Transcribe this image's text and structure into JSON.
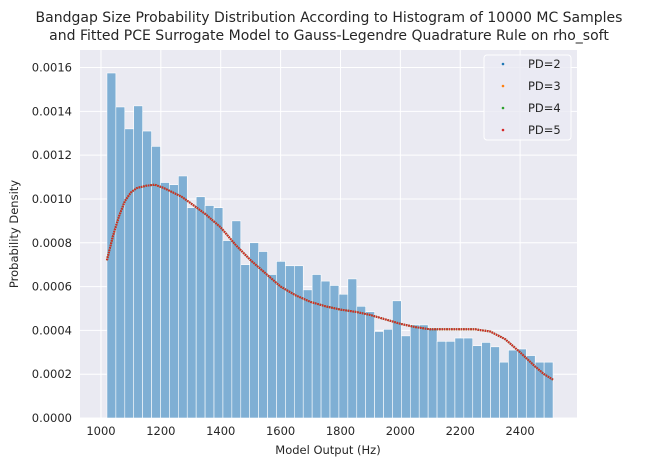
{
  "chart_data": {
    "type": "bar",
    "title_line1": "Bandgap Size Probability Distribution According to Histogram of 10000 MC Samples",
    "title_line2": "and Fitted PCE Surrogate Model to Gauss-Legendre Quadrature Rule on rho_soft",
    "xlabel": "Model Output (Hz)",
    "ylabel": "Probability Density",
    "xlim": [
      930,
      2590
    ],
    "ylim": [
      0,
      0.00168
    ],
    "xticks": [
      1000,
      1200,
      1400,
      1600,
      1800,
      2000,
      2200,
      2400
    ],
    "xtick_labels": [
      "1000",
      "1200",
      "1400",
      "1600",
      "1800",
      "2000",
      "2200",
      "2400"
    ],
    "yticks": [
      0,
      0.0002,
      0.0004,
      0.0006,
      0.0008,
      0.001,
      0.0012,
      0.0014,
      0.0016
    ],
    "ytick_labels": [
      "0.0000",
      "0.0002",
      "0.0004",
      "0.0006",
      "0.0008",
      "0.0010",
      "0.0012",
      "0.0014",
      "0.0016"
    ],
    "grid": true,
    "legend_position": "top-right",
    "background_color": "#eaeaf2",
    "histogram": {
      "bin_start": 1020,
      "bin_end": 2510,
      "color": "#7fafd4",
      "heights": [
        0.001575,
        0.00142,
        0.00132,
        0.001425,
        0.00131,
        0.00124,
        0.001075,
        0.001065,
        0.001105,
        0.00096,
        0.00101,
        0.00097,
        0.00096,
        0.00081,
        0.0009,
        0.0007,
        0.0008,
        0.00076,
        0.000655,
        0.000715,
        0.000695,
        0.000695,
        0.000585,
        0.000655,
        0.000625,
        0.000605,
        0.000565,
        0.000635,
        0.00051,
        0.000485,
        0.000395,
        0.000405,
        0.000535,
        0.000375,
        0.000425,
        0.000425,
        0.00041,
        0.00035,
        0.00035,
        0.000365,
        0.000365,
        0.00033,
        0.000345,
        0.000325,
        0.000255,
        0.00031,
        0.000315,
        0.000285,
        0.000255,
        0.000255
      ]
    },
    "series": [
      {
        "name": "PD=2",
        "color": "#1f77b4",
        "x": [
          1020,
          1040,
          1060,
          1080,
          1100,
          1120,
          1150,
          1180,
          1210,
          1240,
          1270,
          1300,
          1350,
          1400,
          1450,
          1500,
          1550,
          1600,
          1650,
          1700,
          1750,
          1800,
          1850,
          1900,
          1950,
          2000,
          2050,
          2100,
          2150,
          2200,
          2250,
          2300,
          2350,
          2400,
          2450,
          2480,
          2510
        ],
        "y": [
          0.00072,
          0.00083,
          0.00092,
          0.00099,
          0.00103,
          0.00105,
          0.00106,
          0.001065,
          0.00105,
          0.00103,
          0.00101,
          0.00098,
          0.00093,
          0.00087,
          0.00079,
          0.00072,
          0.00066,
          0.0006,
          0.00056,
          0.00053,
          0.00051,
          0.000495,
          0.000485,
          0.00047,
          0.00045,
          0.00043,
          0.000415,
          0.000405,
          0.000405,
          0.000405,
          0.000405,
          0.000395,
          0.00036,
          0.0003,
          0.000235,
          0.0002,
          0.000175
        ]
      },
      {
        "name": "PD=3",
        "color": "#ff7f0e",
        "x": [
          1020,
          1040,
          1060,
          1080,
          1100,
          1120,
          1150,
          1180,
          1210,
          1240,
          1270,
          1300,
          1350,
          1400,
          1450,
          1500,
          1550,
          1600,
          1650,
          1700,
          1750,
          1800,
          1850,
          1900,
          1950,
          2000,
          2050,
          2100,
          2150,
          2200,
          2250,
          2300,
          2350,
          2400,
          2450,
          2480,
          2510
        ],
        "y": [
          0.00072,
          0.00083,
          0.00092,
          0.00099,
          0.00103,
          0.00105,
          0.00106,
          0.001065,
          0.00105,
          0.00103,
          0.00101,
          0.00098,
          0.00093,
          0.00087,
          0.00079,
          0.00072,
          0.00066,
          0.0006,
          0.00056,
          0.00053,
          0.00051,
          0.000495,
          0.000485,
          0.00047,
          0.00045,
          0.00043,
          0.000415,
          0.000405,
          0.000405,
          0.000405,
          0.000405,
          0.000395,
          0.00036,
          0.0003,
          0.000235,
          0.0002,
          0.000175
        ]
      },
      {
        "name": "PD=4",
        "color": "#2ca02c",
        "x": [
          1020,
          1040,
          1060,
          1080,
          1100,
          1120,
          1150,
          1180,
          1210,
          1240,
          1270,
          1300,
          1350,
          1400,
          1450,
          1500,
          1550,
          1600,
          1650,
          1700,
          1750,
          1800,
          1850,
          1900,
          1950,
          2000,
          2050,
          2100,
          2150,
          2200,
          2250,
          2300,
          2350,
          2400,
          2450,
          2480,
          2510
        ],
        "y": [
          0.00072,
          0.00083,
          0.00092,
          0.00099,
          0.00103,
          0.00105,
          0.00106,
          0.001065,
          0.00105,
          0.00103,
          0.00101,
          0.00098,
          0.00093,
          0.00087,
          0.00079,
          0.00072,
          0.00066,
          0.0006,
          0.00056,
          0.00053,
          0.00051,
          0.000495,
          0.000485,
          0.00047,
          0.00045,
          0.00043,
          0.000415,
          0.000405,
          0.000405,
          0.000405,
          0.000405,
          0.000395,
          0.00036,
          0.0003,
          0.000235,
          0.0002,
          0.000175
        ]
      },
      {
        "name": "PD=5",
        "color": "#d62728",
        "x": [
          1020,
          1040,
          1060,
          1080,
          1100,
          1120,
          1150,
          1180,
          1210,
          1240,
          1270,
          1300,
          1350,
          1400,
          1450,
          1500,
          1550,
          1600,
          1650,
          1700,
          1750,
          1800,
          1850,
          1900,
          1950,
          2000,
          2050,
          2100,
          2150,
          2200,
          2250,
          2300,
          2350,
          2400,
          2450,
          2480,
          2510
        ],
        "y": [
          0.00072,
          0.00083,
          0.00092,
          0.00099,
          0.00103,
          0.00105,
          0.00106,
          0.001065,
          0.00105,
          0.00103,
          0.00101,
          0.00098,
          0.00093,
          0.00087,
          0.00079,
          0.00072,
          0.00066,
          0.0006,
          0.00056,
          0.00053,
          0.00051,
          0.000495,
          0.000485,
          0.00047,
          0.00045,
          0.00043,
          0.000415,
          0.000405,
          0.000405,
          0.000405,
          0.000405,
          0.000395,
          0.00036,
          0.0003,
          0.000235,
          0.0002,
          0.000175
        ]
      }
    ]
  }
}
